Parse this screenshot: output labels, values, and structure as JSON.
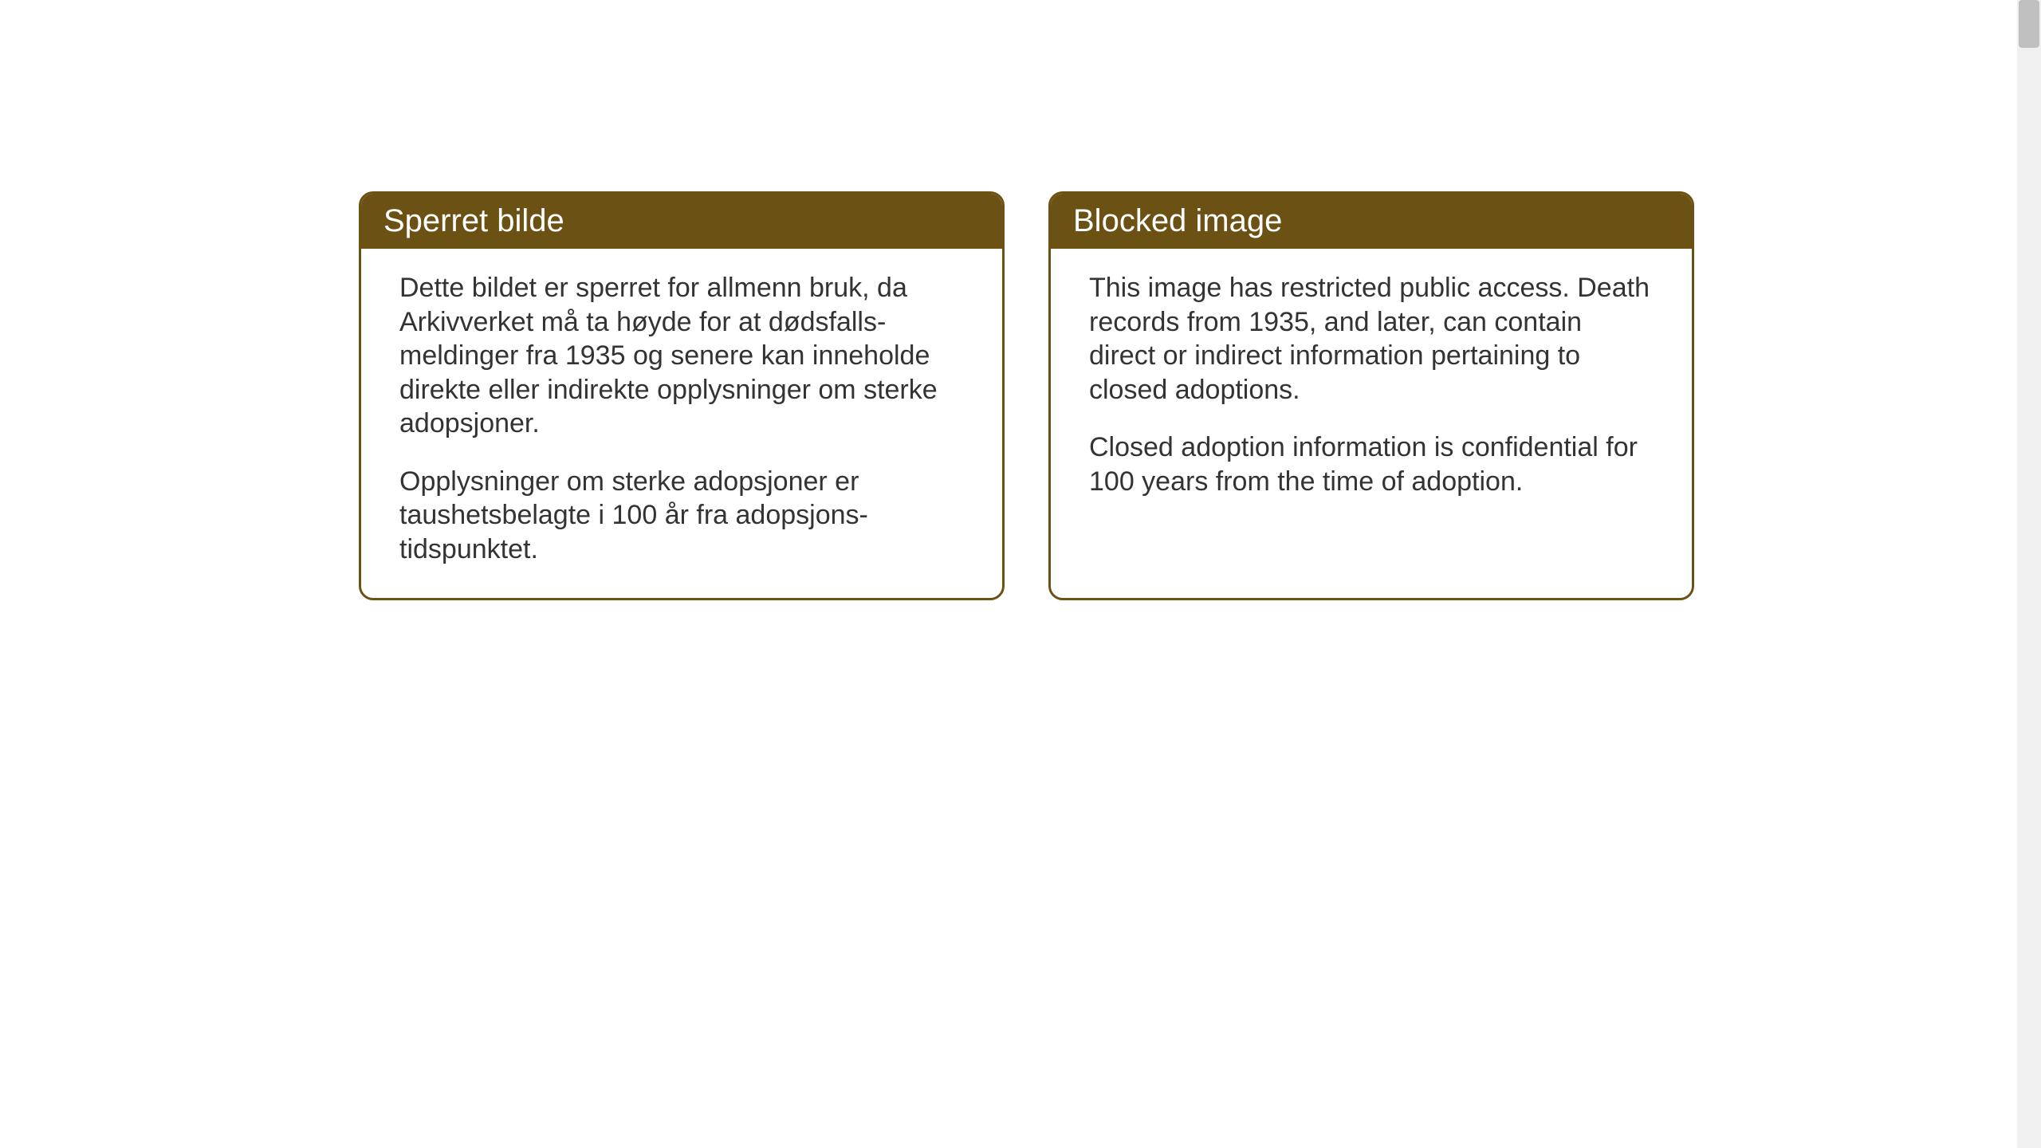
{
  "background_color": "#ffffff",
  "card_border_color": "#6b5114",
  "header_bg_color": "#6b5114",
  "header_text_color": "#ffffff",
  "body_text_color": "#333333",
  "header_fontsize": 40,
  "body_fontsize": 34,
  "cards": {
    "left": {
      "title": "Sperret bilde",
      "paragraph1": "Dette bildet er sperret for allmenn bruk, da Arkivverket må ta høyde for at dødsfalls-meldinger fra 1935 og senere kan inneholde direkte eller indirekte opplysninger om sterke adopsjoner.",
      "paragraph2": "Opplysninger om sterke adopsjoner er taushetsbelagte i 100 år fra adopsjons-tidspunktet."
    },
    "right": {
      "title": "Blocked image",
      "paragraph1": "This image has restricted public access. Death records from 1935, and later, can contain direct or indirect information pertaining to closed adoptions.",
      "paragraph2": "Closed adoption information is confidential for 100 years from the time of adoption."
    }
  }
}
